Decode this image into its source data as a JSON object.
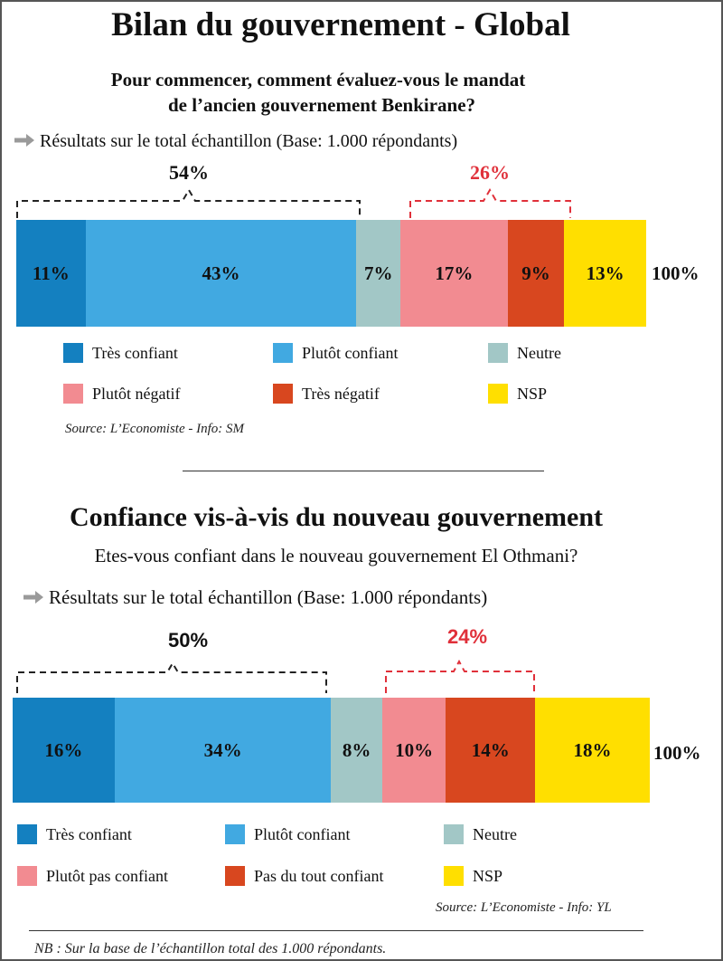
{
  "header": {
    "title": "Bilan du gouvernement - Global"
  },
  "section1": {
    "question_line1": "Pour commencer, comment évaluez-vous le mandat",
    "question_line2": "de l’ancien gouvernement Benkirane?",
    "results_label": "Résultats sur le total échantillon (Base: 1.000 répondants)",
    "positive_total": "54%",
    "negative_total": "26%",
    "total_label": "100%",
    "source": "Source: L’Economiste - Info: SM"
  },
  "section2": {
    "title": "Confiance vis-à-vis du nouveau gouvernement",
    "question": "Etes-vous confiant dans le nouveau gouvernement El Othmani?",
    "results_label": "Résultats sur le total échantillon (Base: 1.000 répondants)",
    "positive_total": "50%",
    "negative_total": "24%",
    "total_label": "100%",
    "source": "Source: L’Economiste - Info: YL"
  },
  "footer": {
    "note": "NB : Sur la base de l’échantillon total  des 1.000 répondants."
  },
  "chart_data": [
    {
      "type": "bar",
      "orientation": "horizontal-stacked",
      "categories": [
        "Très confiant",
        "Plutôt confiant",
        "Neutre",
        "Plutôt négatif",
        "Très négatif",
        "NSP"
      ],
      "values": [
        11,
        43,
        7,
        17,
        9,
        13
      ],
      "labels": [
        "11%",
        "43%",
        "7%",
        "17%",
        "9%",
        "13%"
      ],
      "colors": [
        "#1480c0",
        "#41a9e1",
        "#a2c7c6",
        "#f28b91",
        "#d8471f",
        "#ffdf00"
      ],
      "legend": [
        "Très confiant",
        "Plutôt confiant",
        "Neutre",
        "Plutôt négatif",
        "Très négatif",
        "NSP"
      ]
    },
    {
      "type": "bar",
      "orientation": "horizontal-stacked",
      "categories": [
        "Très confiant",
        "Plutôt confiant",
        "Neutre",
        "Plutôt pas confiant",
        "Pas du tout confiant",
        "NSP"
      ],
      "values": [
        16,
        34,
        8,
        10,
        14,
        18
      ],
      "labels": [
        "16%",
        "34%",
        "8%",
        "10%",
        "14%",
        "18%"
      ],
      "colors": [
        "#1480c0",
        "#41a9e1",
        "#a2c7c6",
        "#f28b91",
        "#d8471f",
        "#ffdf00"
      ],
      "legend": [
        "Très confiant",
        "Plutôt confiant",
        "Neutre",
        "Plutôt pas confiant",
        "Pas du tout confiant",
        "NSP"
      ]
    }
  ],
  "colors": {
    "accent_red": "#e0303a",
    "text": "#111111",
    "arrow": "#9a9a9a"
  }
}
